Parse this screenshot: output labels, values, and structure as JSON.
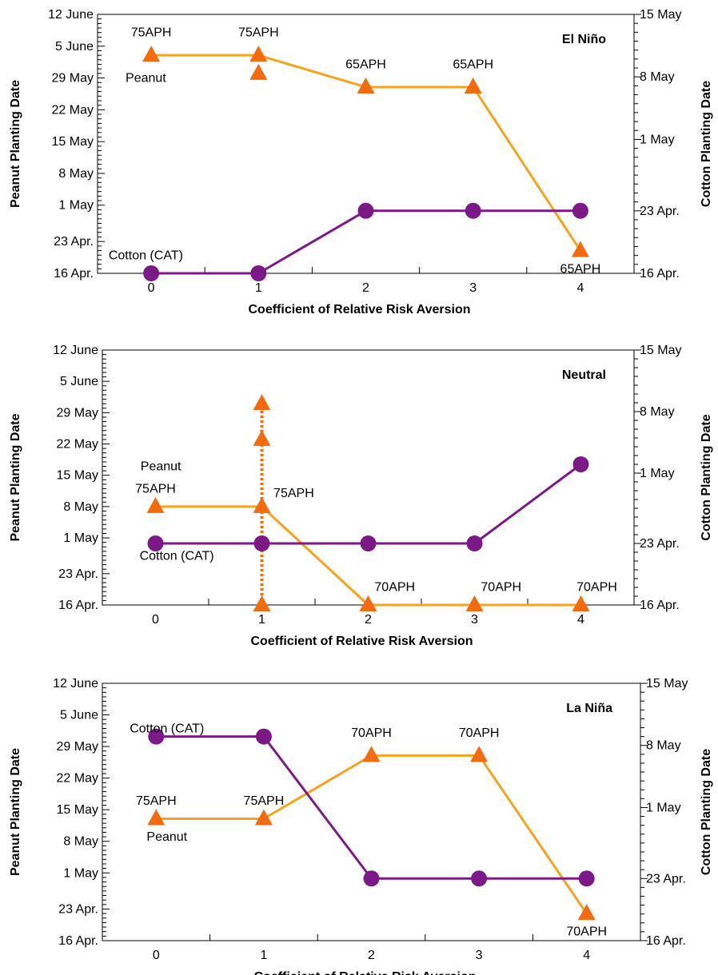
{
  "colors": {
    "peanut_line": "#F7A21B",
    "peanut_marker": "#F26B0F",
    "cotton": "#7B1A86",
    "axis": "#000000"
  },
  "chart_data": [
    {
      "type": "line",
      "title": "El Niño",
      "xlabel": "Coefficient of Relative Risk Aversion",
      "ylabel_left": "Peanut Planting Date",
      "ylabel_right": "Cotton Planting Date",
      "x_ticks": [
        "0",
        "1",
        "2",
        "3",
        "4"
      ],
      "xlim": [
        -0.5,
        4.5
      ],
      "left_ticks": [
        "16 Apr.",
        "23 Apr.",
        "1 May",
        "8 May",
        "15 May",
        "22 May",
        "29 May",
        "5 June",
        "12 June"
      ],
      "right_ticks": [
        "16 Apr.",
        "23 Apr.",
        "1 May",
        "8 May",
        "15 May"
      ],
      "series": [
        {
          "name": "Peanut",
          "axis": "left",
          "marker": "triangle",
          "x": [
            0,
            1,
            2,
            3,
            4
          ],
          "y": [
            "3 June",
            "3 June",
            "27 May",
            "27 May",
            "21 Apr."
          ]
        },
        {
          "name": "Cotton (CAT)",
          "axis": "right",
          "marker": "circle",
          "x": [
            0,
            1,
            2,
            3,
            4
          ],
          "y": [
            "16 Apr.",
            "16 Apr.",
            "23 Apr.",
            "23 Apr.",
            "23 Apr."
          ]
        }
      ],
      "extra_points": [
        {
          "series": "Peanut",
          "x": 1,
          "y": "30 May"
        }
      ],
      "annotations": [
        {
          "text": "75APH",
          "x": 0,
          "y": "8 June"
        },
        {
          "text": "75APH",
          "x": 1,
          "y": "8 June"
        },
        {
          "text": "65APH",
          "x": 2,
          "y": "1 June"
        },
        {
          "text": "65APH",
          "x": 3,
          "y": "1 June"
        },
        {
          "text": "65APH",
          "x": 4,
          "y": "17 Apr."
        },
        {
          "text": "Peanut",
          "x": -0.05,
          "y": "29 May"
        },
        {
          "text": "Cotton (CAT)",
          "x": -0.05,
          "y": "20 Apr."
        }
      ]
    },
    {
      "type": "line",
      "title": "Neutral",
      "xlabel": "Coefficient of Relative Risk Aversion",
      "ylabel_left": "Peanut Planting Date",
      "ylabel_right": "Cotton Planting Date",
      "x_ticks": [
        "0",
        "1",
        "2",
        "3",
        "4"
      ],
      "xlim": [
        -0.5,
        4.5
      ],
      "left_ticks": [
        "16 Apr.",
        "23 Apr.",
        "1 May",
        "8 May",
        "15 May",
        "22 May",
        "29 May",
        "5 June",
        "12 June"
      ],
      "right_ticks": [
        "16 Apr.",
        "23 Apr.",
        "1 May",
        "8 May",
        "15 May"
      ],
      "series": [
        {
          "name": "Peanut",
          "axis": "left",
          "marker": "triangle",
          "x": [
            0,
            1,
            2,
            3,
            4
          ],
          "y": [
            "8 May",
            "8 May",
            "16 Apr.",
            "16 Apr.",
            "16 Apr."
          ]
        },
        {
          "name": "Cotton (CAT)",
          "axis": "right",
          "marker": "circle",
          "x": [
            0,
            1,
            2,
            3,
            4
          ],
          "y": [
            "23 Apr.",
            "23 Apr.",
            "23 Apr.",
            "23 Apr.",
            "2 May"
          ]
        }
      ],
      "dotted_range": {
        "series": "Peanut",
        "x": 1,
        "from": "16 Apr.",
        "to": "31 May",
        "markers": [
          "16 Apr.",
          "23 May",
          "31 May"
        ]
      },
      "annotations": [
        {
          "text": "75APH",
          "x": 0,
          "y": "12 May"
        },
        {
          "text": "75APH",
          "x": 1.3,
          "y": "11 May"
        },
        {
          "text": "70APH",
          "x": 2.25,
          "y": "20 Apr."
        },
        {
          "text": "70APH",
          "x": 3.25,
          "y": "20 Apr."
        },
        {
          "text": "70APH",
          "x": 4.15,
          "y": "20 Apr."
        },
        {
          "text": "Peanut",
          "x": 0.05,
          "y": "17 May"
        },
        {
          "text": "Cotton (CAT)",
          "x": 0.2,
          "y": "27 Apr."
        }
      ]
    },
    {
      "type": "line",
      "title": "La Niña",
      "xlabel": "Coefficient of Relative Risk Aversion",
      "ylabel_left": "Peanut Planting Date",
      "ylabel_right": "Cotton Planting Date",
      "x_ticks": [
        "0",
        "1",
        "2",
        "3",
        "4"
      ],
      "xlim": [
        -0.5,
        4.5
      ],
      "left_ticks": [
        "16 Apr.",
        "23 Apr.",
        "1 May",
        "8 May",
        "15 May",
        "22 May",
        "29 May",
        "5 June",
        "12 June"
      ],
      "right_ticks": [
        "16 Apr.",
        "23 Apr.",
        "1 May",
        "8 May",
        "15 May"
      ],
      "series": [
        {
          "name": "Peanut",
          "axis": "left",
          "marker": "triangle",
          "x": [
            0,
            1,
            2,
            3,
            4
          ],
          "y": [
            "13 May",
            "13 May",
            "27 May",
            "27 May",
            "22 Apr."
          ]
        },
        {
          "name": "Cotton (CAT)",
          "axis": "right",
          "marker": "circle",
          "x": [
            0,
            1,
            2,
            3,
            4
          ],
          "y": [
            "9 May",
            "9 May",
            "23 Apr.",
            "23 Apr.",
            "23 Apr."
          ]
        }
      ],
      "annotations": [
        {
          "text": "75APH",
          "x": 0,
          "y": "17 May"
        },
        {
          "text": "75APH",
          "x": 1,
          "y": "17 May"
        },
        {
          "text": "70APH",
          "x": 2,
          "y": "1 June"
        },
        {
          "text": "70APH",
          "x": 3,
          "y": "1 June"
        },
        {
          "text": "70APH",
          "x": 4,
          "y": "18 Apr."
        },
        {
          "text": "Peanut",
          "x": 0.1,
          "y": "9 May"
        },
        {
          "text": "Cotton (CAT)",
          "x": 0.1,
          "y": "2 June"
        }
      ]
    }
  ]
}
